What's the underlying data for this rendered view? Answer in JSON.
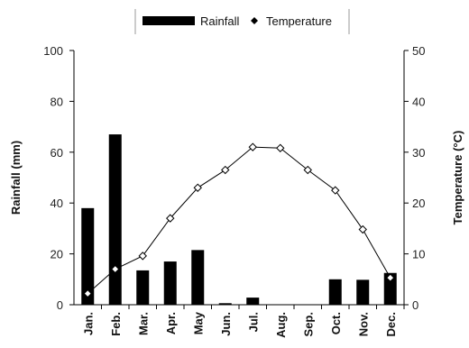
{
  "chart_data": {
    "type": "bar+line",
    "categories": [
      "Jan.",
      "Feb.",
      "Mar.",
      "Apr.",
      "May",
      "Jun.",
      "Jul.",
      "Aug.",
      "Sep.",
      "Oct.",
      "Nov.",
      "Dec."
    ],
    "series": [
      {
        "name": "Rainfall",
        "type": "bar",
        "axis": "left",
        "color": "#000000",
        "values": [
          38,
          67,
          13.5,
          17,
          21.5,
          0.6,
          2.8,
          0,
          0,
          10,
          9.8,
          12.5
        ]
      },
      {
        "name": "Temperature",
        "type": "line",
        "axis": "right",
        "color": "#000000",
        "values": [
          2.2,
          7,
          9.6,
          17,
          23,
          26.5,
          31,
          30.8,
          26.5,
          22.5,
          14.8,
          5.3
        ]
      }
    ],
    "ylabel": "Rainfall (mm)",
    "y2label": "Temperature (°C)",
    "ylim": [
      0,
      100
    ],
    "y2lim": [
      0,
      50
    ],
    "yticks": [
      "0",
      "20",
      "40",
      "60",
      "80",
      "100"
    ],
    "y2ticks": [
      "0",
      "10",
      "20",
      "30",
      "40",
      "50"
    ],
    "legend_position": "top-center",
    "grid": false
  }
}
